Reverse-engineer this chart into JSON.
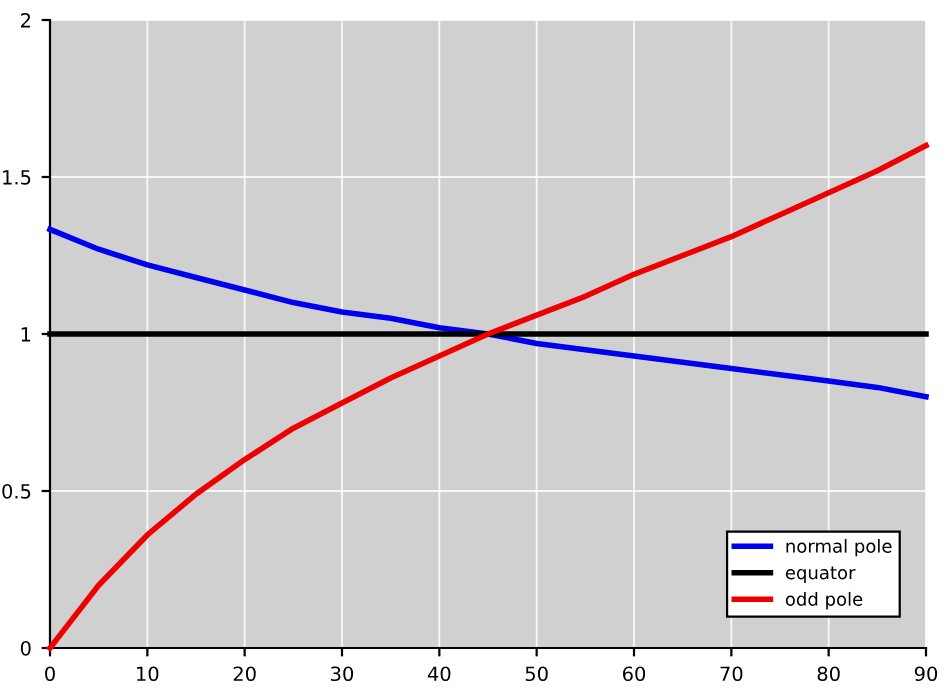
{
  "chart_data": {
    "type": "line",
    "xlim": [
      0,
      90
    ],
    "ylim": [
      0,
      2
    ],
    "xticks": [
      0,
      10,
      20,
      30,
      40,
      50,
      60,
      70,
      80,
      90
    ],
    "yticks": [
      0,
      0.5,
      1,
      1.5,
      2
    ],
    "grid": true,
    "legend": "bottom right",
    "marker": "none",
    "line_style": "solid",
    "series": [
      {
        "name": "normal pole",
        "color": "#0000ee",
        "x": [
          0,
          5,
          10,
          15,
          20,
          25,
          30,
          35,
          40,
          45,
          50,
          55,
          60,
          65,
          70,
          75,
          80,
          85,
          90
        ],
        "values": [
          1.333,
          1.27,
          1.22,
          1.18,
          1.14,
          1.1,
          1.07,
          1.05,
          1.02,
          1.0,
          0.97,
          0.95,
          0.93,
          0.91,
          0.89,
          0.87,
          0.85,
          0.83,
          0.8
        ]
      },
      {
        "name": "equator",
        "color": "#000000",
        "x": [
          0,
          90
        ],
        "values": [
          1,
          1
        ]
      },
      {
        "name": "odd pole",
        "color": "#ee0000",
        "x": [
          0,
          2,
          5,
          10,
          15,
          20,
          25,
          30,
          35,
          40,
          45,
          50,
          55,
          60,
          65,
          70,
          75,
          80,
          85,
          90
        ],
        "values": [
          0,
          0.08,
          0.2,
          0.36,
          0.49,
          0.6,
          0.7,
          0.78,
          0.86,
          0.93,
          1.0,
          1.06,
          1.12,
          1.19,
          1.25,
          1.31,
          1.38,
          1.45,
          1.52,
          1.6
        ]
      }
    ]
  }
}
